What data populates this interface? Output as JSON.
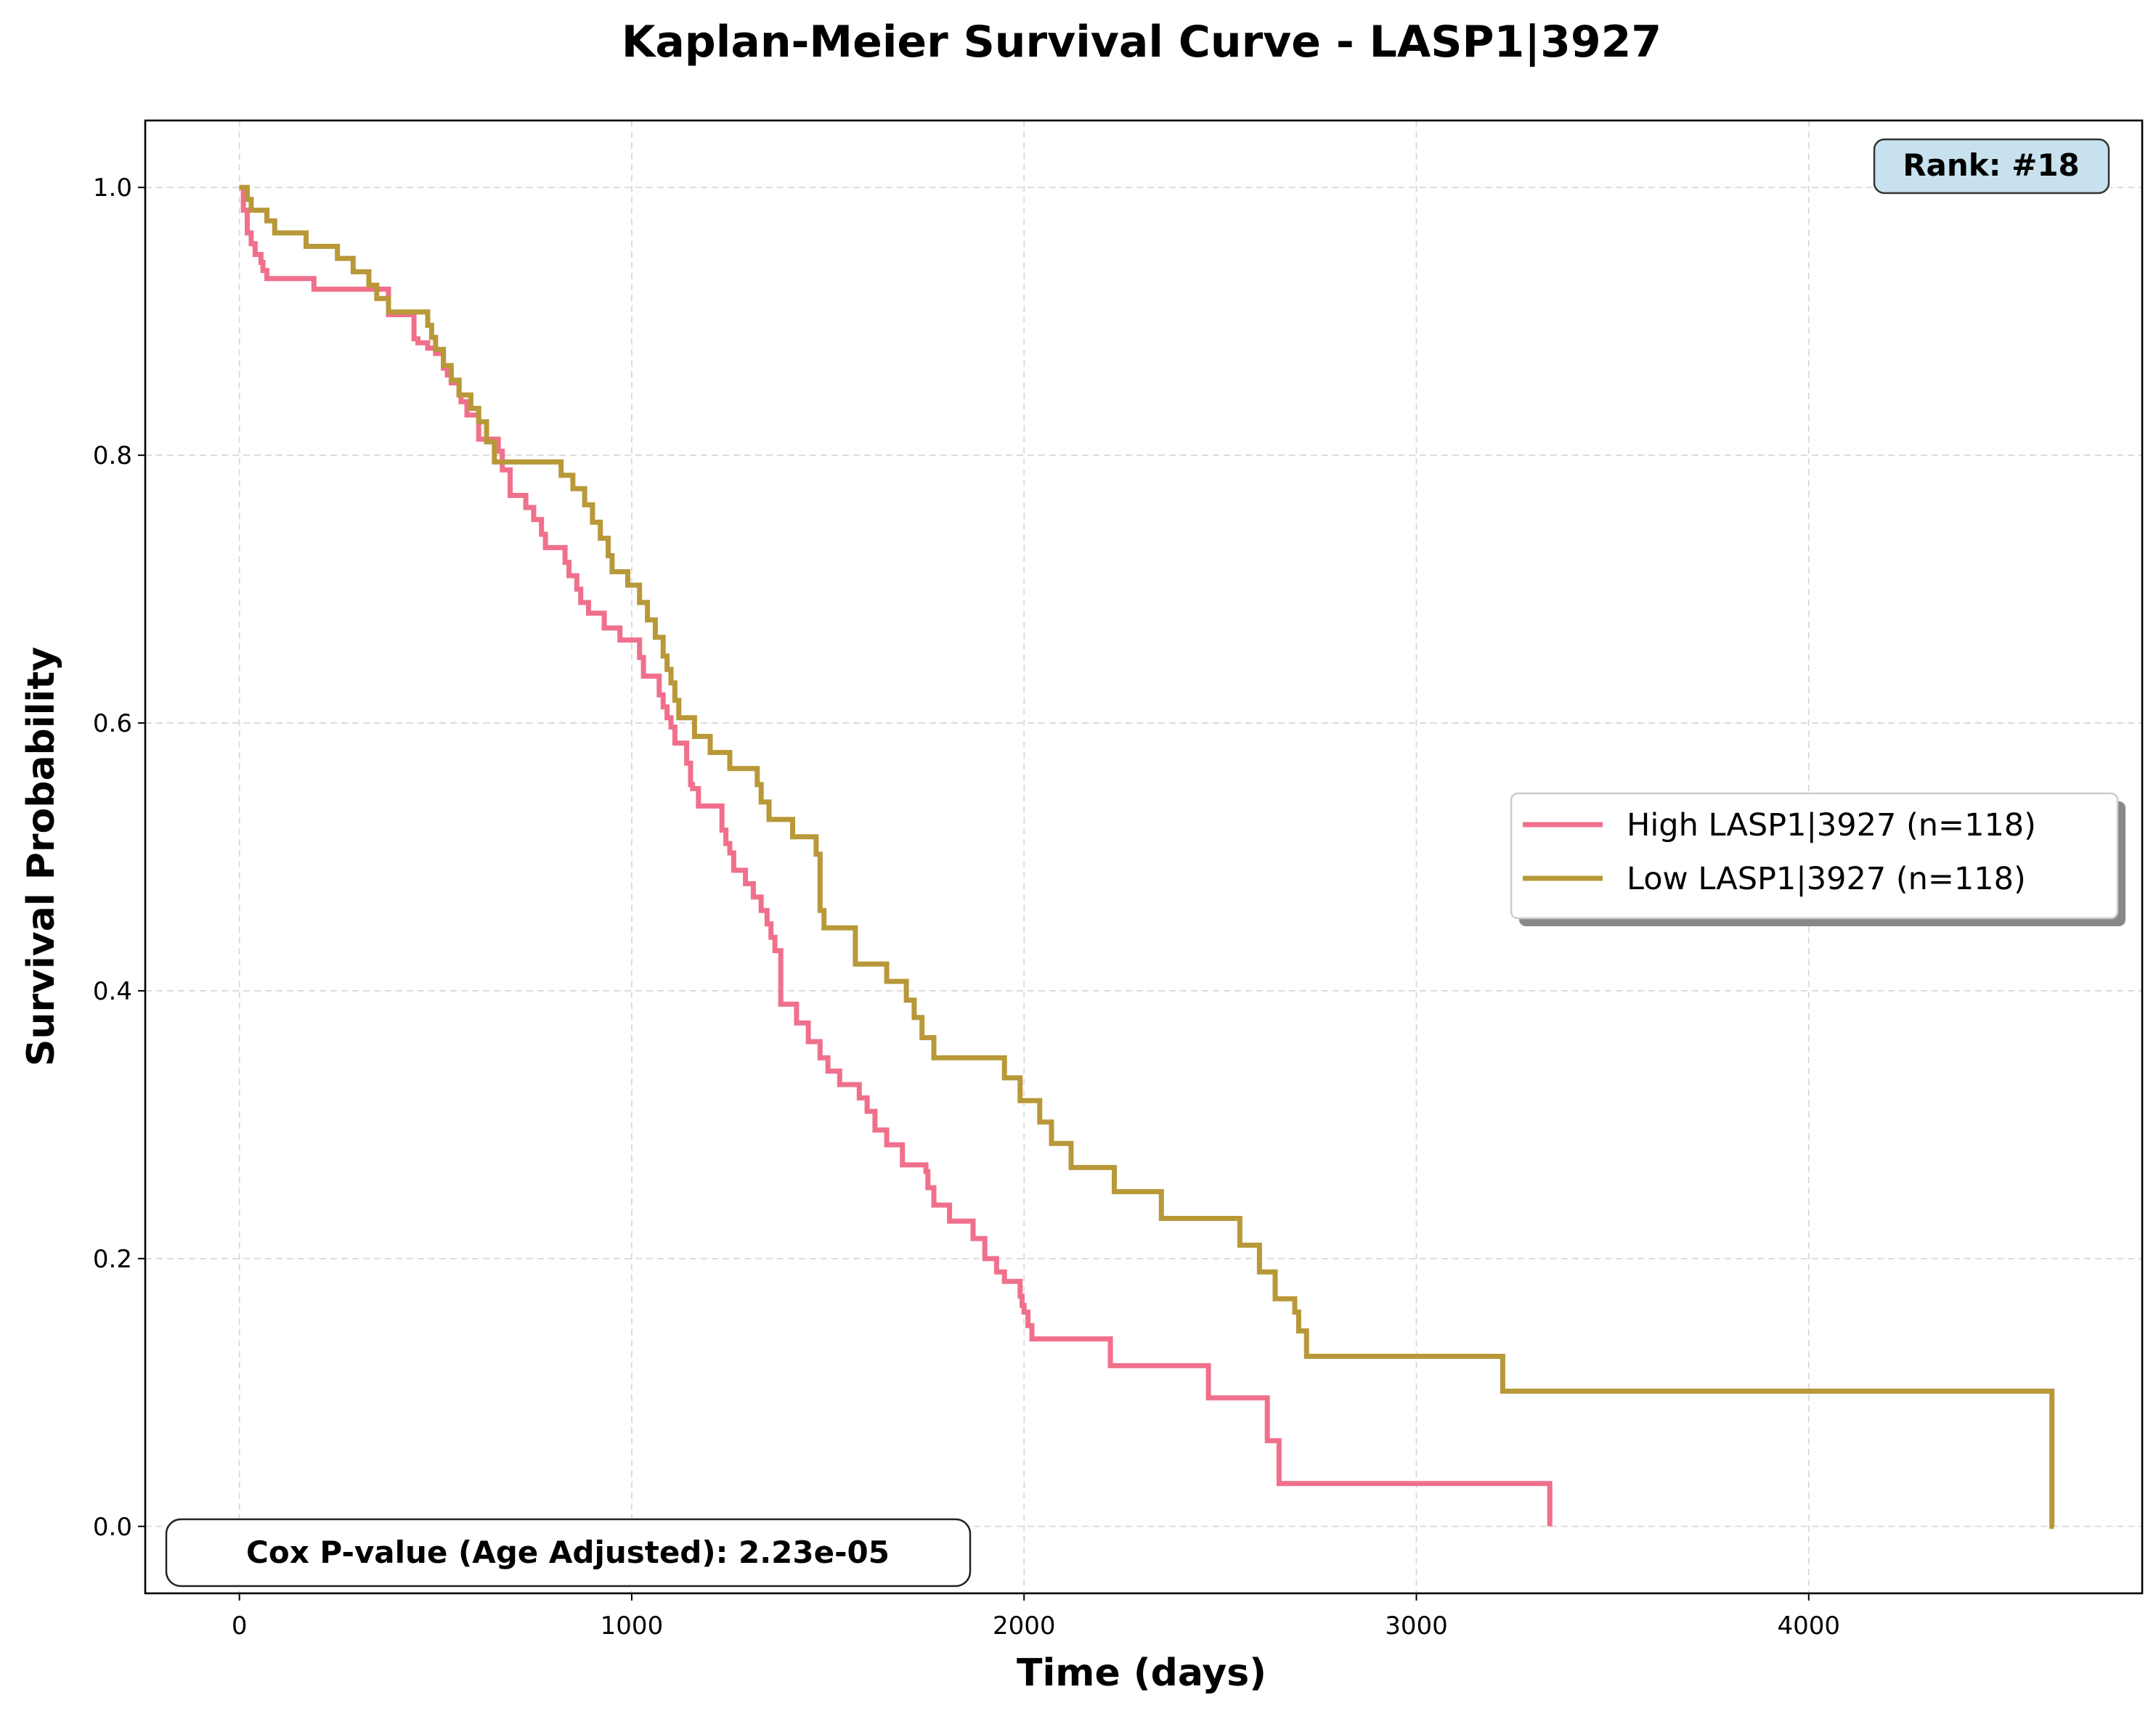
{
  "chart_data": {
    "type": "line",
    "subtype": "kaplan-meier-step",
    "title": "Kaplan-Meier Survival Curve - LASP1|3927",
    "xlabel": "Time (days)",
    "ylabel": "Survival Probability",
    "xlim": [
      -240,
      4850
    ],
    "ylim": [
      -0.05,
      1.05
    ],
    "xticks": [
      0,
      1000,
      2000,
      3000,
      4000
    ],
    "xtick_labels": [
      "0",
      "1000",
      "2000",
      "3000",
      "4000"
    ],
    "yticks": [
      0.0,
      0.2,
      0.4,
      0.6,
      0.8,
      1.0
    ],
    "ytick_labels": [
      "0.0",
      "0.2",
      "0.4",
      "0.6",
      "0.8",
      "1.0"
    ],
    "grid": true,
    "legend_position": "center-right",
    "annotations": {
      "rank": "Rank: #18",
      "cox": "Cox P-value (Age Adjusted): 2.23e-05"
    },
    "series": [
      {
        "name": "High LASP1|3927 (n=118)",
        "color": "#f0708c",
        "x": [
          0,
          10,
          20,
          30,
          40,
          55,
          60,
          70,
          190,
          380,
          390,
          445,
          455,
          480,
          500,
          520,
          530,
          540,
          560,
          565,
          580,
          610,
          660,
          670,
          690,
          730,
          750,
          770,
          780,
          830,
          840,
          860,
          870,
          890,
          930,
          970,
          1020,
          1030,
          1070,
          1080,
          1090,
          1100,
          1110,
          1140,
          1150,
          1155,
          1170,
          1230,
          1240,
          1250,
          1260,
          1290,
          1310,
          1330,
          1345,
          1355,
          1365,
          1380,
          1420,
          1450,
          1480,
          1500,
          1530,
          1580,
          1600,
          1620,
          1650,
          1690,
          1750,
          1755,
          1770,
          1810,
          1870,
          1900,
          1930,
          1950,
          1990,
          1995,
          2000,
          2010,
          2020,
          2050,
          2220,
          2250,
          2470,
          2500,
          2620,
          2650,
          2660,
          3340
        ],
        "y": [
          1.0,
          0.983,
          0.966,
          0.958,
          0.95,
          0.944,
          0.938,
          0.932,
          0.924,
          0.905,
          0.905,
          0.887,
          0.884,
          0.88,
          0.876,
          0.865,
          0.86,
          0.854,
          0.845,
          0.84,
          0.83,
          0.812,
          0.803,
          0.789,
          0.77,
          0.761,
          0.752,
          0.741,
          0.731,
          0.72,
          0.71,
          0.7,
          0.69,
          0.682,
          0.671,
          0.662,
          0.649,
          0.635,
          0.621,
          0.612,
          0.604,
          0.597,
          0.585,
          0.57,
          0.554,
          0.551,
          0.538,
          0.52,
          0.51,
          0.503,
          0.49,
          0.48,
          0.47,
          0.46,
          0.45,
          0.44,
          0.43,
          0.39,
          0.376,
          0.362,
          0.35,
          0.34,
          0.33,
          0.32,
          0.31,
          0.296,
          0.285,
          0.27,
          0.265,
          0.253,
          0.24,
          0.228,
          0.215,
          0.2,
          0.19,
          0.183,
          0.172,
          0.165,
          0.16,
          0.15,
          0.14,
          0.14,
          0.12,
          0.12,
          0.096,
          0.096,
          0.064,
          0.032,
          0.032,
          0.0
        ]
      },
      {
        "name": "Low LASP1|3927 (n=118)",
        "color": "#b89838",
        "x": [
          0,
          20,
          30,
          70,
          90,
          170,
          250,
          290,
          330,
          350,
          380,
          400,
          480,
          490,
          500,
          520,
          540,
          560,
          590,
          610,
          630,
          650,
          820,
          850,
          880,
          900,
          920,
          940,
          950,
          990,
          1020,
          1040,
          1060,
          1080,
          1090,
          1100,
          1110,
          1120,
          1160,
          1200,
          1250,
          1320,
          1330,
          1350,
          1410,
          1470,
          1480,
          1490,
          1570,
          1650,
          1700,
          1720,
          1740,
          1770,
          1800,
          1950,
          1990,
          2040,
          2070,
          2120,
          2180,
          2230,
          2350,
          2400,
          2550,
          2600,
          2640,
          2680,
          2690,
          2700,
          2720,
          2740,
          3220,
          3240,
          4620,
          4625
        ],
        "y": [
          1.0,
          0.991,
          0.983,
          0.975,
          0.966,
          0.956,
          0.947,
          0.937,
          0.927,
          0.917,
          0.907,
          0.907,
          0.897,
          0.888,
          0.879,
          0.867,
          0.856,
          0.845,
          0.835,
          0.825,
          0.81,
          0.795,
          0.785,
          0.775,
          0.763,
          0.75,
          0.738,
          0.725,
          0.713,
          0.703,
          0.69,
          0.677,
          0.664,
          0.65,
          0.64,
          0.63,
          0.617,
          0.604,
          0.59,
          0.578,
          0.566,
          0.554,
          0.541,
          0.528,
          0.515,
          0.502,
          0.46,
          0.447,
          0.42,
          0.407,
          0.393,
          0.38,
          0.365,
          0.35,
          0.35,
          0.335,
          0.318,
          0.302,
          0.286,
          0.268,
          0.268,
          0.25,
          0.23,
          0.23,
          0.21,
          0.19,
          0.17,
          0.17,
          0.16,
          0.146,
          0.127,
          0.127,
          0.101,
          0.101,
          0.0,
          0.0
        ]
      }
    ]
  }
}
